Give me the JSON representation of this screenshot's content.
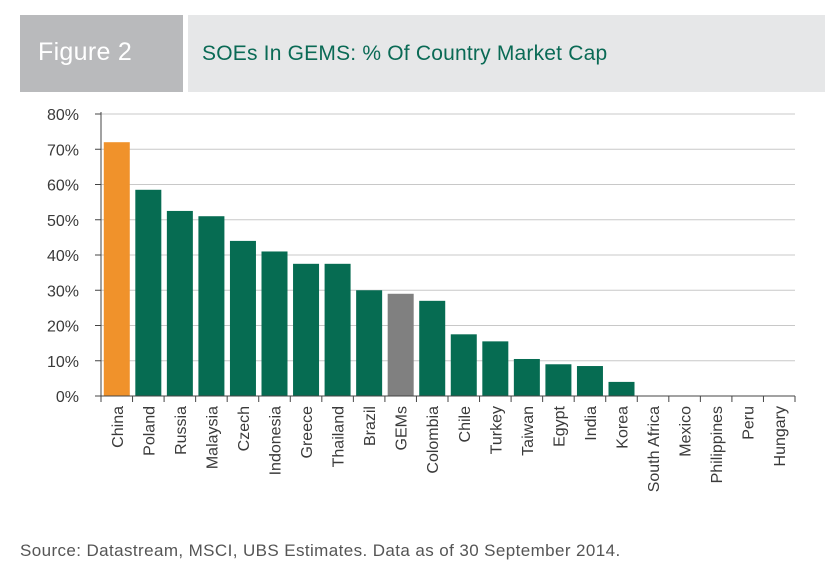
{
  "header": {
    "figure_label": "Figure 2",
    "title": "SOEs In GEMS: % Of Country Market Cap"
  },
  "colors": {
    "default_bar": "#066c52",
    "highlight_bar": "#f0922b",
    "benchmark_bar": "#808080",
    "gridline": "#c8c8c8",
    "axis": "#444444",
    "text": "#3a3a3a"
  },
  "chart_data": {
    "type": "bar",
    "title": "SOEs In GEMS: % Of Country Market Cap",
    "xlabel": "",
    "ylabel": "",
    "ylim": [
      0,
      80
    ],
    "yticks": [
      "0%",
      "10%",
      "20%",
      "30%",
      "40%",
      "50%",
      "60%",
      "70%",
      "80%"
    ],
    "grid": true,
    "categories": [
      "China",
      "Poland",
      "Russia",
      "Malaysia",
      "Czech",
      "Indonesia",
      "Greece",
      "Thailand",
      "Brazil",
      "GEMs",
      "Colombia",
      "Chile",
      "Turkey",
      "Taiwan",
      "Egypt",
      "India",
      "Korea",
      "South Africa",
      "Mexico",
      "Philippines",
      "Peru",
      "Hungary"
    ],
    "values": [
      72,
      58.5,
      52.5,
      51,
      44,
      41,
      37.5,
      37.5,
      30,
      29,
      27,
      17.5,
      15.5,
      10.5,
      9,
      8.5,
      4,
      0,
      0,
      0,
      0,
      0
    ],
    "highlight": {
      "China": "#f0922b",
      "GEMs": "#808080"
    }
  },
  "footer": {
    "source": "Source: Datastream, MSCI, UBS Estimates. Data as of 30 September 2014."
  }
}
